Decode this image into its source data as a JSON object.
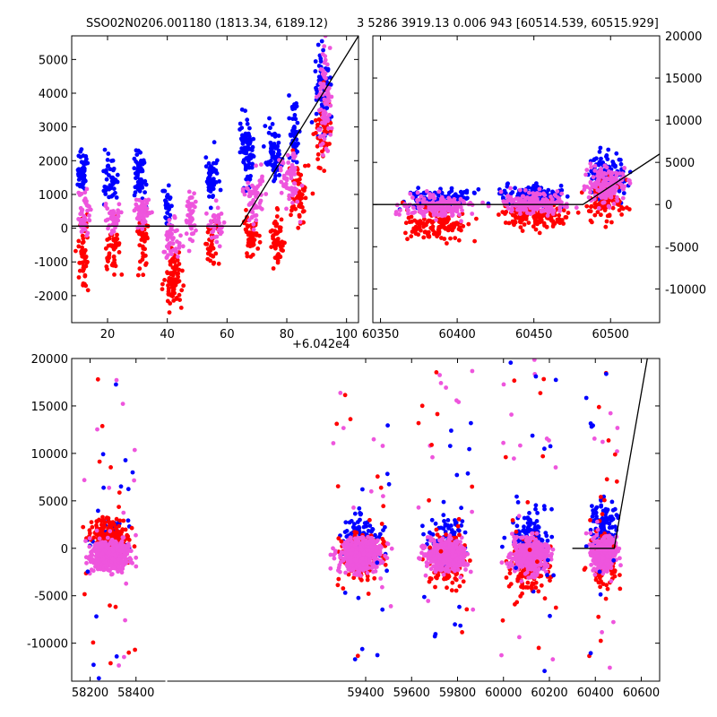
{
  "title_left": "SSO02N0206.001180 (1813.34, 6189.12)",
  "title_right": "3 5286 3919.13 0.006 943 [60514.539, 60515.929]",
  "colors": {
    "blue": "#0000ff",
    "red": "#ff0000",
    "pink": "#ee55dd",
    "line": "#000000"
  },
  "chart_data": [
    {
      "type": "scatter",
      "panel": "top-left",
      "x_offset_label": "+6.042e4",
      "xlim": [
        8,
        104
      ],
      "ylim": [
        -2800,
        5700
      ],
      "xticks": [
        20,
        40,
        60,
        80,
        100
      ],
      "yticks": [
        -2000,
        -1000,
        0,
        1000,
        2000,
        3000,
        4000,
        5000
      ],
      "ytick_side": "left",
      "model_line": {
        "x": [
          8,
          64.5,
          104
        ],
        "y": [
          60,
          60,
          5700
        ]
      },
      "series": [
        {
          "color": "blue",
          "clusters": [
            {
              "x": [
                9,
                14
              ],
              "y": [
                800,
                2500
              ],
              "n": 60
            },
            {
              "x": [
                16,
                25
              ],
              "y": [
                500,
                2300
              ],
              "n": 45
            },
            {
              "x": [
                28,
                34
              ],
              "y": [
                600,
                2600
              ],
              "n": 60
            },
            {
              "x": [
                38,
                42
              ],
              "y": [
                -200,
                1600
              ],
              "n": 30
            },
            {
              "x": [
                52,
                58
              ],
              "y": [
                600,
                2400
              ],
              "n": 50
            },
            {
              "x": [
                63,
                70
              ],
              "y": [
                1000,
                3800
              ],
              "n": 80
            },
            {
              "x": [
                72,
                79
              ],
              "y": [
                1200,
                3500
              ],
              "n": 70
            },
            {
              "x": [
                80,
                85
              ],
              "y": [
                1500,
                4200
              ],
              "n": 40
            },
            {
              "x": [
                88,
                96
              ],
              "y": [
                2500,
                5500
              ],
              "n": 90
            }
          ]
        },
        {
          "color": "red",
          "clusters": [
            {
              "x": [
                9,
                15
              ],
              "y": [
                -2200,
                500
              ],
              "n": 50
            },
            {
              "x": [
                18,
                26
              ],
              "y": [
                -1800,
                500
              ],
              "n": 45
            },
            {
              "x": [
                29,
                35
              ],
              "y": [
                -1600,
                800
              ],
              "n": 45
            },
            {
              "x": [
                38,
                46
              ],
              "y": [
                -2600,
                -400
              ],
              "n": 80
            },
            {
              "x": [
                52,
                58
              ],
              "y": [
                -1400,
                400
              ],
              "n": 35
            },
            {
              "x": [
                64,
                72
              ],
              "y": [
                -800,
                500
              ],
              "n": 50
            },
            {
              "x": [
                74,
                80
              ],
              "y": [
                -1300,
                600
              ],
              "n": 55
            },
            {
              "x": [
                80,
                88
              ],
              "y": [
                -300,
                2200
              ],
              "n": 60
            },
            {
              "x": [
                88,
                96
              ],
              "y": [
                1200,
                4500
              ],
              "n": 60
            }
          ]
        },
        {
          "color": "pink",
          "clusters": [
            {
              "x": [
                9,
                15
              ],
              "y": [
                -500,
                1200
              ],
              "n": 45
            },
            {
              "x": [
                18,
                26
              ],
              "y": [
                -200,
                900
              ],
              "n": 40
            },
            {
              "x": [
                28,
                35
              ],
              "y": [
                -300,
                1100
              ],
              "n": 55
            },
            {
              "x": [
                38,
                46
              ],
              "y": [
                -1200,
                500
              ],
              "n": 45
            },
            {
              "x": [
                46,
                50
              ],
              "y": [
                -600,
                1300
              ],
              "n": 45
            },
            {
              "x": [
                52,
                60
              ],
              "y": [
                -700,
                800
              ],
              "n": 40
            },
            {
              "x": [
                64,
                74
              ],
              "y": [
                -200,
                2000
              ],
              "n": 60
            },
            {
              "x": [
                76,
                86
              ],
              "y": [
                300,
                2600
              ],
              "n": 60
            },
            {
              "x": [
                90,
                96
              ],
              "y": [
                2000,
                5600
              ],
              "n": 80
            }
          ]
        }
      ]
    },
    {
      "type": "scatter",
      "panel": "top-right",
      "xlim": [
        60345,
        60532
      ],
      "ylim": [
        -14000,
        20000
      ],
      "xticks": [
        60350,
        60400,
        60450,
        60500
      ],
      "yticks": [
        -10000,
        -5000,
        0,
        5000,
        10000,
        15000,
        20000
      ],
      "ytick_side": "right",
      "model_line": {
        "x": [
          60345,
          60482,
          60532
        ],
        "y": [
          0,
          0,
          6000
        ]
      },
      "series": [
        {
          "color": "blue",
          "clusters": [
            {
              "x": [
                60360,
                60420
              ],
              "y": [
                -1000,
                2200
              ],
              "n": 120
            },
            {
              "x": [
                60420,
                60480
              ],
              "y": [
                -500,
                2500
              ],
              "n": 160
            },
            {
              "x": [
                60480,
                60516
              ],
              "y": [
                200,
                7000
              ],
              "n": 150
            }
          ]
        },
        {
          "color": "red",
          "clusters": [
            {
              "x": [
                60355,
                60420
              ],
              "y": [
                -5000,
                500
              ],
              "n": 130
            },
            {
              "x": [
                60420,
                60480
              ],
              "y": [
                -3500,
                800
              ],
              "n": 150
            },
            {
              "x": [
                60480,
                60516
              ],
              "y": [
                -2500,
                3500
              ],
              "n": 120
            }
          ]
        },
        {
          "color": "pink",
          "clusters": [
            {
              "x": [
                60355,
                60420
              ],
              "y": [
                -2000,
                1500
              ],
              "n": 160
            },
            {
              "x": [
                60420,
                60480
              ],
              "y": [
                -1500,
                1800
              ],
              "n": 180
            },
            {
              "x": [
                60480,
                60516
              ],
              "y": [
                -500,
                5000
              ],
              "n": 150
            }
          ]
        }
      ]
    },
    {
      "type": "scatter",
      "panel": "bottom",
      "xlim": [
        58120,
        60680
      ],
      "ylim": [
        -14000,
        20000
      ],
      "xticks": [
        58200,
        58400,
        59400,
        59600,
        59800,
        60000,
        60200,
        60400,
        60600
      ],
      "yticks": [
        -10000,
        -5000,
        0,
        5000,
        10000,
        15000,
        20000
      ],
      "ytick_side": "left",
      "axis_break": [
        [
          58450,
          59270
        ]
      ],
      "model_line": {
        "x": [
          60300,
          60482,
          60630
        ],
        "y": [
          0,
          0,
          20500
        ]
      },
      "series": [
        {
          "color": "blue",
          "clusters": [
            {
              "x": [
                58170,
                58400
              ],
              "y": [
                -2000,
                3500
              ],
              "n": 90
            },
            {
              "x": [
                59250,
                59510
              ],
              "y": [
                -2000,
                4000
              ],
              "n": 120
            },
            {
              "x": [
                59630,
                59870
              ],
              "y": [
                -3000,
                4500
              ],
              "n": 120
            },
            {
              "x": [
                59990,
                60230
              ],
              "y": [
                -2500,
                5000
              ],
              "n": 140
            },
            {
              "x": [
                60360,
                60516
              ],
              "y": [
                -1500,
                6500
              ],
              "n": 110
            }
          ]
        },
        {
          "color": "red",
          "clusters": [
            {
              "x": [
                58170,
                58400
              ],
              "y": [
                -1500,
                4000
              ],
              "n": 180
            },
            {
              "x": [
                59250,
                59510
              ],
              "y": [
                -4000,
                2500
              ],
              "n": 150
            },
            {
              "x": [
                59630,
                59870
              ],
              "y": [
                -5000,
                2500
              ],
              "n": 150
            },
            {
              "x": [
                59990,
                60230
              ],
              "y": [
                -6000,
                2500
              ],
              "n": 160
            },
            {
              "x": [
                60360,
                60516
              ],
              "y": [
                -5000,
                2500
              ],
              "n": 130
            }
          ]
        },
        {
          "color": "pink",
          "clusters": [
            {
              "x": [
                58170,
                58400
              ],
              "y": [
                -3000,
                1500
              ],
              "n": 420
            },
            {
              "x": [
                59250,
                59510
              ],
              "y": [
                -3000,
                1500
              ],
              "n": 420
            },
            {
              "x": [
                59630,
                59870
              ],
              "y": [
                -3000,
                1500
              ],
              "n": 420
            },
            {
              "x": [
                59990,
                60230
              ],
              "y": [
                -3000,
                1500
              ],
              "n": 420
            },
            {
              "x": [
                60360,
                60516
              ],
              "y": [
                -3000,
                2000
              ],
              "n": 320
            }
          ]
        }
      ],
      "outliers": [
        {
          "x": [
            58170,
            58400
          ],
          "y": [
            -14000,
            18000
          ],
          "n": 40
        },
        {
          "x": [
            59250,
            59510
          ],
          "y": [
            -12000,
            17000
          ],
          "n": 40
        },
        {
          "x": [
            59630,
            59870
          ],
          "y": [
            -10000,
            19000
          ],
          "n": 40
        },
        {
          "x": [
            59990,
            60230
          ],
          "y": [
            -13000,
            20000
          ],
          "n": 45
        },
        {
          "x": [
            60360,
            60516
          ],
          "y": [
            -13000,
            19000
          ],
          "n": 40
        }
      ]
    }
  ]
}
